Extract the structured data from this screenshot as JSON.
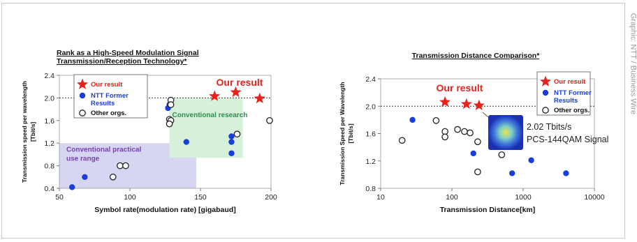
{
  "credit": "Graphic: NTT / Business Wire",
  "chart_data": [
    {
      "type": "scatter",
      "title": "Rank as a High-Speed Modulation Signal Transmission/Reception Technology*",
      "title_lines": [
        "Rank as a High-Speed Modulation Signal",
        "Transmission/Reception Technology*"
      ],
      "xlabel": "Symbol rate(modulation rate) [gigabaud]",
      "ylabel": "Transmission speed per wavelength [Tbit/s]",
      "ylabel_lines": [
        "Transmission speed per wavelength",
        "[Tbit/s]"
      ],
      "xlim": [
        50,
        200
      ],
      "ylim": [
        0.4,
        2.4
      ],
      "xticks": [
        50,
        100,
        150,
        200
      ],
      "yticks": [
        0.4,
        0.8,
        1.2,
        1.6,
        2.0,
        2.4
      ],
      "ytick_labels": [
        "0.4",
        "0.8",
        "1.2",
        "1.6",
        "2.0",
        "2.4"
      ],
      "reference_line_y": 2.0,
      "legend": {
        "position": "top-left",
        "entries": [
          "Our result",
          "NTT Former Results",
          "Other orgs."
        ]
      },
      "regions": [
        {
          "label": "Conventional practical use range",
          "label_lines": [
            "Conventional practical",
            "use range"
          ],
          "x": [
            50,
            147
          ],
          "y": [
            0.4,
            1.2
          ],
          "color": "#d6d6f2",
          "text_color": "#7a3fb2"
        },
        {
          "label": "Conventional research",
          "x": [
            128,
            180
          ],
          "y": [
            0.94,
            2.0
          ],
          "color": "#d6f0da",
          "text_color": "#2f8f4f"
        }
      ],
      "annotations": [
        {
          "text": "Our result",
          "color": "#e8211c"
        }
      ],
      "series": [
        {
          "name": "Our result",
          "marker": "star",
          "color": "#e8211c",
          "points": [
            [
              160,
              2.03
            ],
            [
              175,
              2.1
            ],
            [
              192,
              1.99
            ]
          ]
        },
        {
          "name": "NTT Former Results",
          "marker": "filled-circle",
          "color": "#1a3fd8",
          "points": [
            [
              59,
              0.42
            ],
            [
              68,
              0.6
            ],
            [
              127,
              1.82
            ],
            [
              128,
              1.88
            ],
            [
              140,
              1.22
            ],
            [
              172,
              1.32
            ],
            [
              172,
              1.22
            ],
            [
              172,
              1.02
            ]
          ]
        },
        {
          "name": "Other orgs.",
          "marker": "open-circle",
          "color": "#222222",
          "points": [
            [
              88,
              0.6
            ],
            [
              93,
              0.8
            ],
            [
              97,
              0.8
            ],
            [
              129,
              1.96
            ],
            [
              129,
              1.88
            ],
            [
              128,
              1.62
            ],
            [
              129,
              1.6
            ],
            [
              128,
              1.54
            ],
            [
              176,
              1.36
            ],
            [
              199,
              1.6
            ]
          ]
        }
      ]
    },
    {
      "type": "scatter",
      "title": "Transmission Distance Comparison*",
      "xlabel": "Transmission Distance[km]",
      "ylabel": "Transmission Speed per Wavelength [Tbit/s]",
      "ylabel_lines": [
        "Transmission Speed per Wavelength",
        "[Tbit/s]"
      ],
      "x_scale": "log",
      "xlim": [
        10,
        10000
      ],
      "ylim": [
        0.8,
        2.4
      ],
      "xticks": [
        10,
        100,
        1000,
        10000
      ],
      "yticks": [
        0.8,
        1.2,
        1.6,
        2.0,
        2.4
      ],
      "ytick_labels": [
        "0.8",
        "1.2",
        "1.6",
        "2.0",
        "2.4"
      ],
      "reference_line_y": 2.0,
      "legend": {
        "position": "top-right",
        "entries": [
          "Our result",
          "NTT Former Results",
          "Other orgs."
        ]
      },
      "annotations": [
        {
          "text": "Our result",
          "color": "#e8211c"
        },
        {
          "text": "2.02 Tbits/s",
          "color": "#222222"
        },
        {
          "text": "PCS-144QAM Signal",
          "color": "#222222"
        }
      ],
      "inset": "PCS-144QAM constellation",
      "series": [
        {
          "name": "Our result",
          "marker": "star",
          "color": "#e8211c",
          "points": [
            [
              80,
              2.06
            ],
            [
              160,
              2.03
            ],
            [
              240,
              2.01
            ]
          ]
        },
        {
          "name": "NTT Former Results",
          "marker": "filled-circle",
          "color": "#1a3fd8",
          "points": [
            [
              28,
              1.8
            ],
            [
              200,
              1.31
            ],
            [
              700,
              1.02
            ],
            [
              1300,
              1.21
            ],
            [
              4000,
              1.02
            ]
          ]
        },
        {
          "name": "Other orgs.",
          "marker": "open-circle",
          "color": "#222222",
          "points": [
            [
              20,
              1.5
            ],
            [
              60,
              1.79
            ],
            [
              80,
              1.63
            ],
            [
              80,
              1.55
            ],
            [
              120,
              1.66
            ],
            [
              150,
              1.63
            ],
            [
              180,
              1.61
            ],
            [
              230,
              1.48
            ],
            [
              230,
              1.04
            ],
            [
              500,
              1.29
            ]
          ]
        }
      ]
    }
  ]
}
